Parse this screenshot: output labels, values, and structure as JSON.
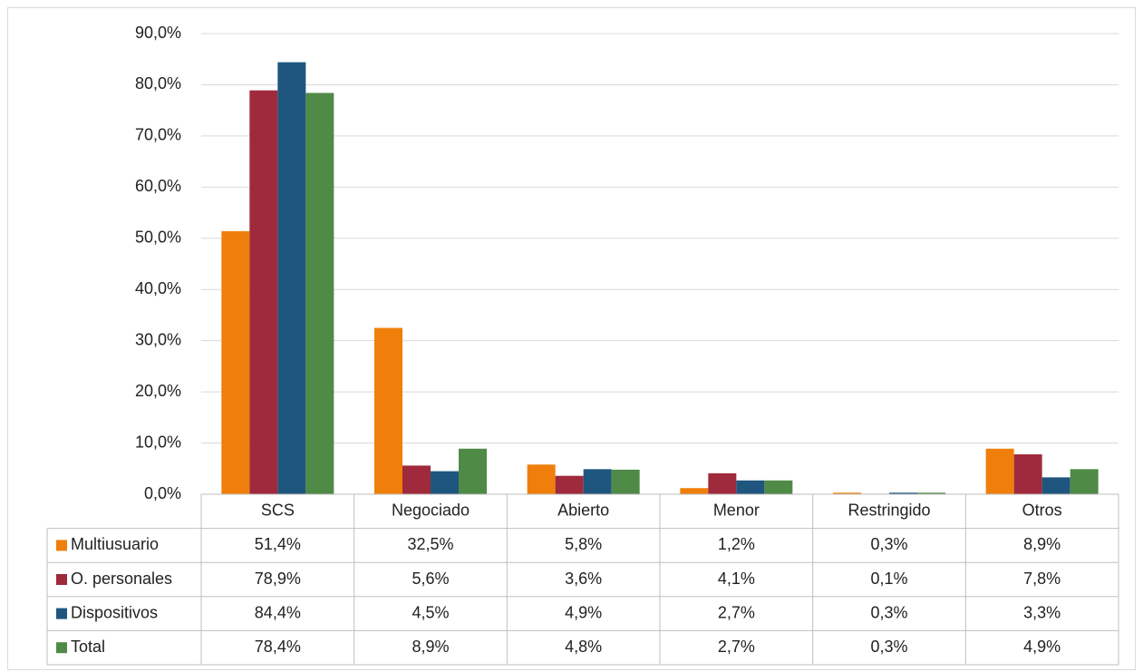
{
  "chart_data": {
    "type": "bar",
    "categories": [
      "SCS",
      "Negociado",
      "Abierto",
      "Menor",
      "Restringido",
      "Otros"
    ],
    "series": [
      {
        "name": "Multiusuario",
        "color": "#ef7f0a",
        "values": [
          51.4,
          32.5,
          5.8,
          1.2,
          0.3,
          8.9
        ],
        "value_labels": [
          "51,4%",
          "32,5%",
          "5,8%",
          "1,2%",
          "0,3%",
          "8,9%"
        ]
      },
      {
        "name": "O. personales",
        "color": "#9f2a3b",
        "values": [
          78.9,
          5.6,
          3.6,
          4.1,
          0.1,
          7.8
        ],
        "value_labels": [
          "78,9%",
          "5,6%",
          "3,6%",
          "4,1%",
          "0,1%",
          "7,8%"
        ]
      },
      {
        "name": "Dispositivos",
        "color": "#1f567f",
        "values": [
          84.4,
          4.5,
          4.9,
          2.7,
          0.3,
          3.3
        ],
        "value_labels": [
          "84,4%",
          "4,5%",
          "4,9%",
          "2,7%",
          "0,3%",
          "3,3%"
        ]
      },
      {
        "name": "Total",
        "color": "#4f8a46",
        "values": [
          78.4,
          8.9,
          4.8,
          2.7,
          0.3,
          4.9
        ],
        "value_labels": [
          "78,4%",
          "8,9%",
          "4,8%",
          "2,7%",
          "0,3%",
          "4,9%"
        ]
      }
    ],
    "ylim": [
      0,
      90
    ],
    "yticks": [
      {
        "value": 0,
        "label": "0,0%"
      },
      {
        "value": 10,
        "label": "10,0%"
      },
      {
        "value": 20,
        "label": "20,0%"
      },
      {
        "value": 30,
        "label": "30,0%"
      },
      {
        "value": 40,
        "label": "40,0%"
      },
      {
        "value": 50,
        "label": "50,0%"
      },
      {
        "value": 60,
        "label": "60,0%"
      },
      {
        "value": 70,
        "label": "70,0%"
      },
      {
        "value": 80,
        "label": "80,0%"
      },
      {
        "value": 90,
        "label": "90,0%"
      }
    ],
    "grid": true
  }
}
